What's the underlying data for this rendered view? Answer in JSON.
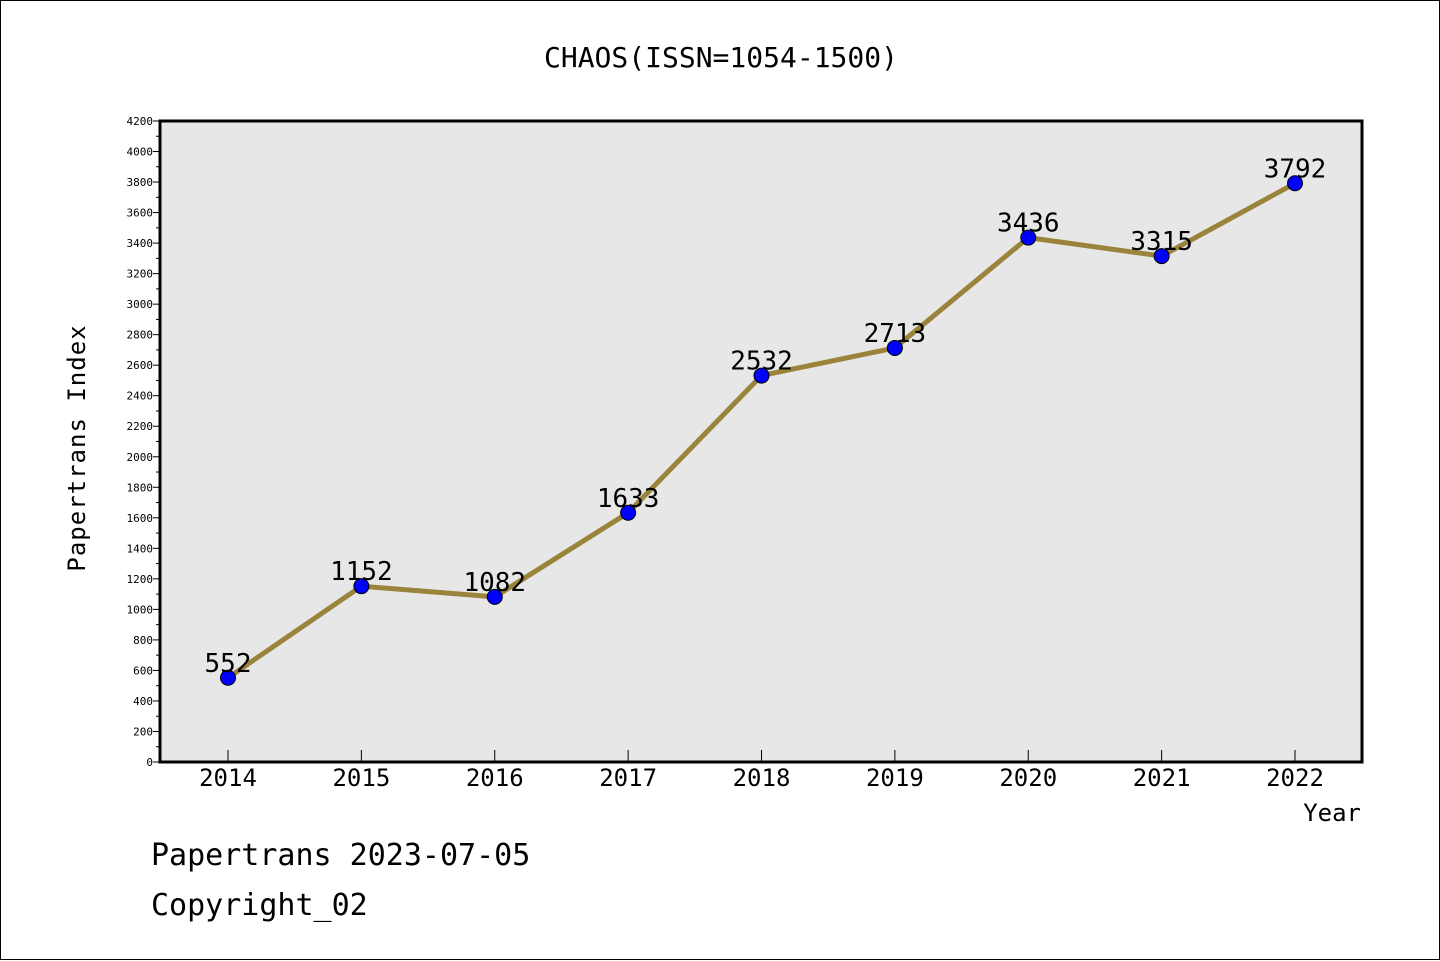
{
  "chart_data": {
    "type": "line",
    "title": "CHAOS(ISSN=1054-1500)",
    "xlabel": "Year",
    "ylabel": "Papertrans Index",
    "categories": [
      "2014",
      "2015",
      "2016",
      "2017",
      "2018",
      "2019",
      "2020",
      "2021",
      "2022"
    ],
    "values": [
      552,
      1152,
      1082,
      1633,
      2532,
      2713,
      3436,
      3315,
      3792
    ],
    "data_labels": [
      "552",
      "1152",
      "1082",
      "1633",
      "2532",
      "2713",
      "3436",
      "3315",
      "3792"
    ],
    "ylim": [
      0,
      4200
    ],
    "yticks": [
      0,
      200,
      400,
      600,
      800,
      1000,
      1200,
      1400,
      1600,
      1800,
      2000,
      2200,
      2400,
      2600,
      2800,
      3000,
      3200,
      3400,
      3600,
      3800,
      4000,
      4200
    ],
    "line_color": "#9a843c",
    "marker_color": "#0000ff",
    "plot_bg": "#e7e7e7",
    "grid": false,
    "legend": "none"
  },
  "footer": {
    "line1": "Papertrans 2023-07-05",
    "line2": "Copyright_02"
  }
}
